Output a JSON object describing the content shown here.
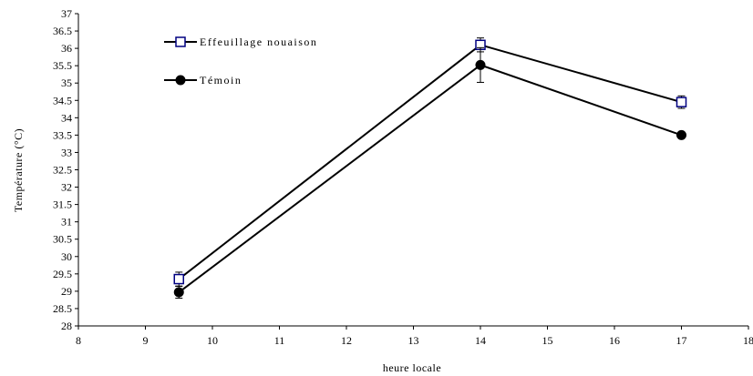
{
  "chart_data": {
    "type": "line",
    "title": "",
    "xlabel": "heure locale",
    "ylabel": "Température (°C)",
    "xlim": [
      8,
      18
    ],
    "ylim": [
      28,
      37
    ],
    "x_ticks": [
      8,
      9,
      10,
      11,
      12,
      13,
      14,
      15,
      16,
      17,
      18
    ],
    "y_ticks": [
      28,
      28.5,
      29,
      29.5,
      30,
      30.5,
      31,
      31.5,
      32,
      32.5,
      33,
      33.5,
      34,
      34.5,
      35,
      35.5,
      36,
      36.5,
      37
    ],
    "grid": false,
    "legend_position": "top-left",
    "series": [
      {
        "name": "Effeuillage nouaison",
        "marker": "open-square",
        "color": "#000080",
        "line_color": "#000000",
        "x": [
          9.5,
          14,
          17
        ],
        "y": [
          29.35,
          36.1,
          34.45
        ],
        "error": [
          0.2,
          0.2,
          0.18
        ]
      },
      {
        "name": "Témoin",
        "marker": "filled-circle",
        "color": "#000000",
        "line_color": "#000000",
        "x": [
          9.5,
          14,
          17
        ],
        "y": [
          28.97,
          35.52,
          33.5
        ],
        "error": [
          0.17,
          0.5,
          0.05
        ]
      }
    ]
  }
}
